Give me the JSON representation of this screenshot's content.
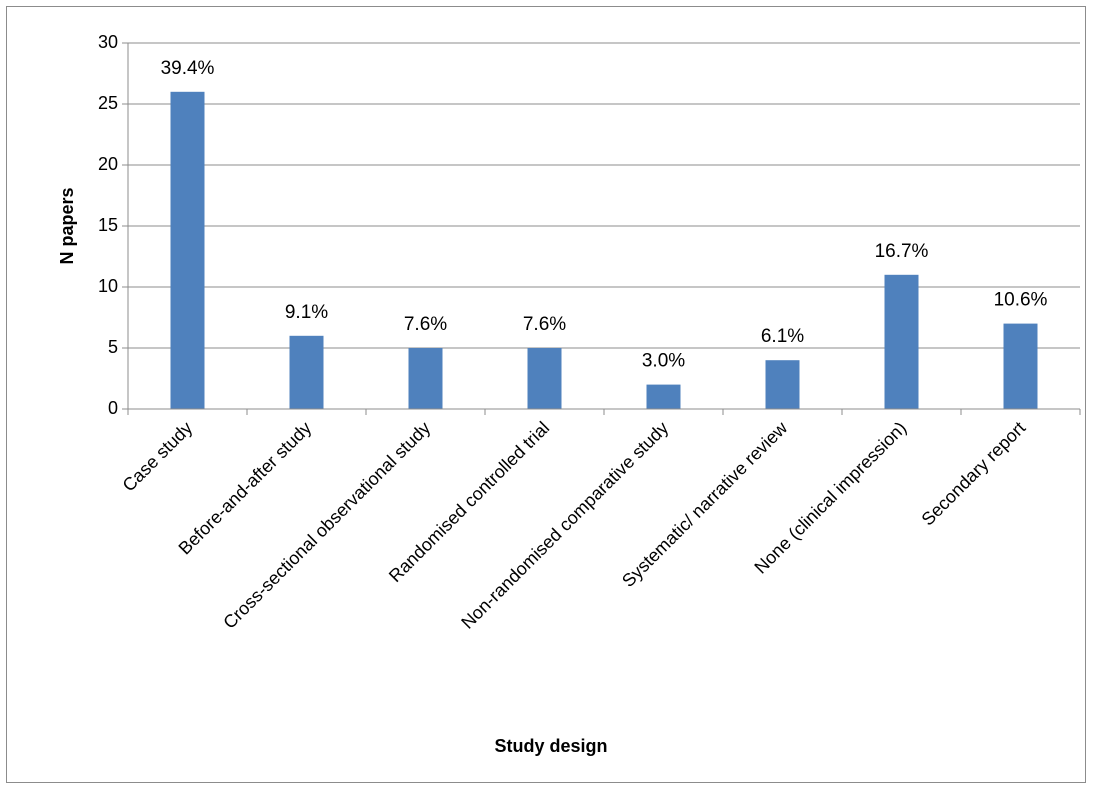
{
  "chart_data": {
    "type": "bar",
    "title": "",
    "xlabel": "Study design",
    "ylabel": "N papers",
    "ylim": [
      0,
      30
    ],
    "yticks": [
      0,
      5,
      10,
      15,
      20,
      25,
      30
    ],
    "grid": true,
    "legend": "none",
    "bar_color": "#4f81bd",
    "categories": [
      "Case study",
      "Before-and-after study",
      "Cross-sectional observational study",
      "Randomised controlled trial",
      "Non-randomised comparative study",
      "Systematic/ narrative review",
      "None (clinical impression)",
      "Secondary report"
    ],
    "values": [
      26,
      6,
      5,
      5,
      2,
      4,
      11,
      7
    ],
    "data_labels": [
      "39.4%",
      "9.1%",
      "7.6%",
      "7.6%",
      "3.0%",
      "6.1%",
      "16.7%",
      "10.6%"
    ]
  }
}
